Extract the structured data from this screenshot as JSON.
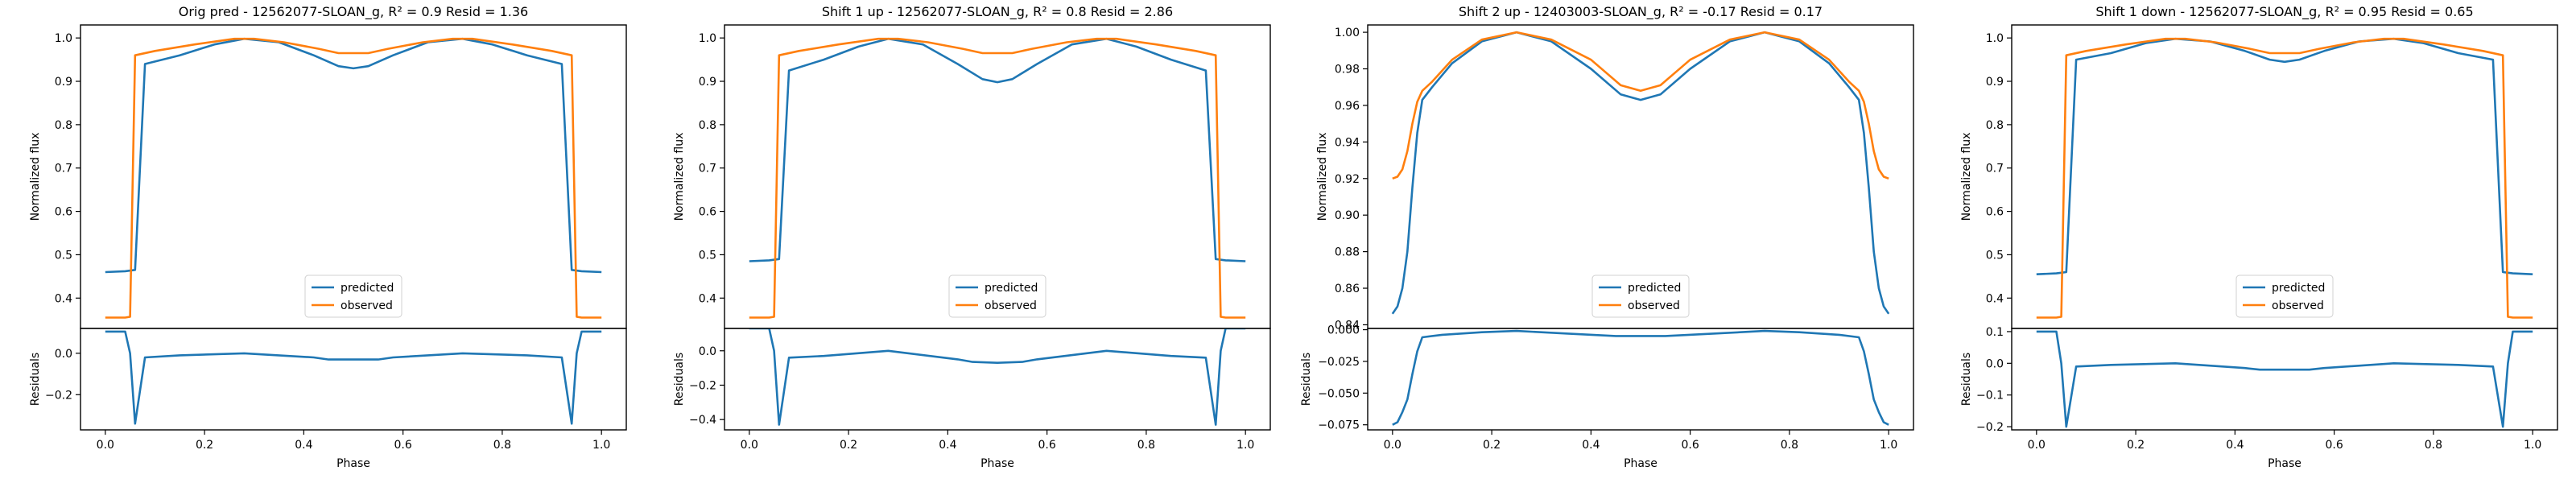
{
  "chart_data": [
    {
      "type": "line",
      "title": "Orig pred - 12562077-SLOAN_g, R² = 0.9 Resid = 1.36",
      "top": {
        "ylabel": "Normalized flux",
        "ylim": [
          0.33,
          1.03
        ],
        "yticks": [
          0.4,
          0.5,
          0.6,
          0.7,
          0.8,
          0.9,
          1.0
        ],
        "ytick_labels": [
          "0.4",
          "0.5",
          "0.6",
          "0.7",
          "0.8",
          "0.9",
          "1.0"
        ],
        "legend": "lower center",
        "series": [
          {
            "name": "predicted",
            "color": "#1f77b4",
            "x": [
              0.0,
              0.04,
              0.06,
              0.08,
              0.15,
              0.22,
              0.28,
              0.35,
              0.42,
              0.47,
              0.5,
              0.53,
              0.58,
              0.65,
              0.72,
              0.78,
              0.85,
              0.92,
              0.94,
              0.96,
              1.0
            ],
            "y": [
              0.46,
              0.462,
              0.465,
              0.94,
              0.96,
              0.985,
              0.998,
              0.99,
              0.96,
              0.935,
              0.93,
              0.935,
              0.96,
              0.99,
              0.998,
              0.985,
              0.96,
              0.94,
              0.465,
              0.462,
              0.46
            ]
          },
          {
            "name": "observed",
            "color": "#ff7f0e",
            "x": [
              0.0,
              0.04,
              0.05,
              0.06,
              0.1,
              0.18,
              0.26,
              0.3,
              0.36,
              0.43,
              0.47,
              0.5,
              0.53,
              0.57,
              0.64,
              0.7,
              0.74,
              0.82,
              0.9,
              0.94,
              0.95,
              0.96,
              1.0
            ],
            "y": [
              0.355,
              0.355,
              0.357,
              0.96,
              0.97,
              0.985,
              0.998,
              0.998,
              0.99,
              0.975,
              0.965,
              0.965,
              0.965,
              0.975,
              0.99,
              0.998,
              0.998,
              0.985,
              0.97,
              0.96,
              0.357,
              0.355,
              0.355
            ]
          }
        ]
      },
      "bottom": {
        "ylabel": "Residuals",
        "xlabel": "Phase",
        "ylim": [
          -0.37,
          0.12
        ],
        "yticks": [
          -0.2,
          0.0
        ],
        "ytick_labels": [
          "−0.2",
          "0.0"
        ],
        "series": [
          {
            "name": "residual",
            "color": "#1f77b4",
            "x": [
              0.0,
              0.04,
              0.05,
              0.06,
              0.08,
              0.15,
              0.28,
              0.42,
              0.45,
              0.5,
              0.55,
              0.58,
              0.72,
              0.85,
              0.92,
              0.94,
              0.95,
              0.96,
              1.0
            ],
            "y": [
              0.105,
              0.105,
              0.0,
              -0.34,
              -0.02,
              -0.01,
              0.0,
              -0.02,
              -0.03,
              -0.03,
              -0.03,
              -0.02,
              0.0,
              -0.01,
              -0.02,
              -0.34,
              0.0,
              0.105,
              0.105
            ]
          }
        ]
      }
    },
    {
      "type": "line",
      "title": "Shift 1 up - 12562077-SLOAN_g, R² = 0.8 Resid = 2.86",
      "top": {
        "ylabel": "Normalized flux",
        "ylim": [
          0.33,
          1.03
        ],
        "yticks": [
          0.4,
          0.5,
          0.6,
          0.7,
          0.8,
          0.9,
          1.0
        ],
        "ytick_labels": [
          "0.4",
          "0.5",
          "0.6",
          "0.7",
          "0.8",
          "0.9",
          "1.0"
        ],
        "legend": "lower center",
        "series": [
          {
            "name": "predicted",
            "color": "#1f77b4",
            "x": [
              0.0,
              0.04,
              0.06,
              0.08,
              0.15,
              0.22,
              0.28,
              0.35,
              0.42,
              0.47,
              0.5,
              0.53,
              0.58,
              0.65,
              0.72,
              0.78,
              0.85,
              0.92,
              0.94,
              0.96,
              1.0
            ],
            "y": [
              0.485,
              0.487,
              0.49,
              0.925,
              0.95,
              0.98,
              0.998,
              0.985,
              0.94,
              0.905,
              0.898,
              0.905,
              0.94,
              0.985,
              0.998,
              0.98,
              0.95,
              0.925,
              0.49,
              0.487,
              0.485
            ]
          },
          {
            "name": "observed",
            "color": "#ff7f0e",
            "x": [
              0.0,
              0.04,
              0.05,
              0.06,
              0.1,
              0.18,
              0.26,
              0.3,
              0.36,
              0.43,
              0.47,
              0.5,
              0.53,
              0.57,
              0.64,
              0.7,
              0.74,
              0.82,
              0.9,
              0.94,
              0.95,
              0.96,
              1.0
            ],
            "y": [
              0.355,
              0.355,
              0.357,
              0.96,
              0.97,
              0.985,
              0.998,
              0.998,
              0.99,
              0.975,
              0.965,
              0.965,
              0.965,
              0.975,
              0.99,
              0.998,
              0.998,
              0.985,
              0.97,
              0.96,
              0.357,
              0.355,
              0.355
            ]
          }
        ]
      },
      "bottom": {
        "ylabel": "Residuals",
        "xlabel": "Phase",
        "ylim": [
          -0.46,
          0.13
        ],
        "yticks": [
          -0.4,
          -0.2,
          0.0
        ],
        "ytick_labels": [
          "−0.4",
          "−0.2",
          "0.0"
        ],
        "series": [
          {
            "name": "residual",
            "color": "#1f77b4",
            "x": [
              0.0,
              0.04,
              0.05,
              0.06,
              0.08,
              0.15,
              0.28,
              0.42,
              0.45,
              0.5,
              0.55,
              0.58,
              0.72,
              0.85,
              0.92,
              0.94,
              0.95,
              0.96,
              1.0
            ],
            "y": [
              0.13,
              0.13,
              0.0,
              -0.43,
              -0.04,
              -0.03,
              0.0,
              -0.05,
              -0.065,
              -0.07,
              -0.065,
              -0.05,
              0.0,
              -0.03,
              -0.04,
              -0.43,
              0.0,
              0.13,
              0.13
            ]
          }
        ]
      }
    },
    {
      "type": "line",
      "title": "Shift 2 up - 12403003-SLOAN_g, R² = -0.17 Resid = 0.17",
      "top": {
        "ylabel": "Normalized flux",
        "ylim": [
          0.838,
          1.004
        ],
        "yticks": [
          0.84,
          0.86,
          0.88,
          0.9,
          0.92,
          0.94,
          0.96,
          0.98,
          1.0
        ],
        "ytick_labels": [
          "0.84",
          "0.86",
          "0.88",
          "0.90",
          "0.92",
          "0.94",
          "0.96",
          "0.98",
          "1.00"
        ],
        "legend": "lower center",
        "series": [
          {
            "name": "predicted",
            "color": "#1f77b4",
            "x": [
              0.0,
              0.01,
              0.02,
              0.03,
              0.04,
              0.05,
              0.06,
              0.08,
              0.12,
              0.18,
              0.25,
              0.32,
              0.4,
              0.46,
              0.5,
              0.54,
              0.6,
              0.68,
              0.75,
              0.82,
              0.88,
              0.92,
              0.94,
              0.95,
              0.96,
              0.97,
              0.98,
              0.99,
              1.0
            ],
            "y": [
              0.846,
              0.85,
              0.86,
              0.88,
              0.915,
              0.945,
              0.963,
              0.97,
              0.983,
              0.995,
              1.0,
              0.995,
              0.98,
              0.966,
              0.963,
              0.966,
              0.98,
              0.995,
              1.0,
              0.995,
              0.983,
              0.97,
              0.963,
              0.945,
              0.915,
              0.88,
              0.86,
              0.85,
              0.846
            ]
          },
          {
            "name": "observed",
            "color": "#ff7f0e",
            "x": [
              0.0,
              0.01,
              0.02,
              0.03,
              0.04,
              0.05,
              0.06,
              0.08,
              0.12,
              0.18,
              0.25,
              0.32,
              0.4,
              0.46,
              0.5,
              0.54,
              0.6,
              0.68,
              0.75,
              0.82,
              0.88,
              0.92,
              0.94,
              0.95,
              0.96,
              0.97,
              0.98,
              0.99,
              1.0
            ],
            "y": [
              0.92,
              0.921,
              0.925,
              0.935,
              0.95,
              0.962,
              0.968,
              0.973,
              0.985,
              0.996,
              1.0,
              0.996,
              0.985,
              0.971,
              0.968,
              0.971,
              0.985,
              0.996,
              1.0,
              0.996,
              0.985,
              0.973,
              0.968,
              0.962,
              0.95,
              0.935,
              0.925,
              0.921,
              0.92
            ]
          }
        ]
      },
      "bottom": {
        "ylabel": "Residuals",
        "xlabel": "Phase",
        "ylim": [
          -0.079,
          0.001
        ],
        "yticks": [
          -0.075,
          -0.05,
          -0.025,
          0.0
        ],
        "ytick_labels": [
          "−0.075",
          "−0.050",
          "−0.025",
          "0.000"
        ],
        "series": [
          {
            "name": "residual",
            "color": "#1f77b4",
            "x": [
              0.0,
              0.01,
              0.02,
              0.03,
              0.04,
              0.05,
              0.06,
              0.1,
              0.18,
              0.25,
              0.35,
              0.45,
              0.5,
              0.55,
              0.65,
              0.75,
              0.82,
              0.9,
              0.94,
              0.95,
              0.96,
              0.97,
              0.98,
              0.99,
              1.0
            ],
            "y": [
              -0.075,
              -0.073,
              -0.065,
              -0.055,
              -0.035,
              -0.017,
              -0.006,
              -0.004,
              -0.002,
              -0.001,
              -0.003,
              -0.005,
              -0.005,
              -0.005,
              -0.003,
              -0.001,
              -0.002,
              -0.004,
              -0.006,
              -0.017,
              -0.035,
              -0.055,
              -0.065,
              -0.073,
              -0.075
            ]
          }
        ]
      }
    },
    {
      "type": "line",
      "title": "Shift 1 down - 12562077-SLOAN_g, R² = 0.95 Resid = 0.65",
      "top": {
        "ylabel": "Normalized flux",
        "ylim": [
          0.33,
          1.03
        ],
        "yticks": [
          0.4,
          0.5,
          0.6,
          0.7,
          0.8,
          0.9,
          1.0
        ],
        "ytick_labels": [
          "0.4",
          "0.5",
          "0.6",
          "0.7",
          "0.8",
          "0.9",
          "1.0"
        ],
        "legend": "lower center",
        "series": [
          {
            "name": "predicted",
            "color": "#1f77b4",
            "x": [
              0.0,
              0.04,
              0.06,
              0.08,
              0.15,
              0.22,
              0.28,
              0.35,
              0.42,
              0.47,
              0.5,
              0.53,
              0.58,
              0.65,
              0.72,
              0.78,
              0.85,
              0.92,
              0.94,
              0.96,
              1.0
            ],
            "y": [
              0.455,
              0.457,
              0.46,
              0.95,
              0.965,
              0.988,
              0.998,
              0.992,
              0.97,
              0.95,
              0.945,
              0.95,
              0.97,
              0.992,
              0.998,
              0.988,
              0.965,
              0.95,
              0.46,
              0.457,
              0.455
            ]
          },
          {
            "name": "observed",
            "color": "#ff7f0e",
            "x": [
              0.0,
              0.04,
              0.05,
              0.06,
              0.1,
              0.18,
              0.26,
              0.3,
              0.36,
              0.43,
              0.47,
              0.5,
              0.53,
              0.57,
              0.64,
              0.7,
              0.74,
              0.82,
              0.9,
              0.94,
              0.95,
              0.96,
              1.0
            ],
            "y": [
              0.355,
              0.355,
              0.357,
              0.96,
              0.97,
              0.985,
              0.998,
              0.998,
              0.99,
              0.975,
              0.965,
              0.965,
              0.965,
              0.975,
              0.99,
              0.998,
              0.998,
              0.985,
              0.97,
              0.96,
              0.357,
              0.355,
              0.355
            ]
          }
        ]
      },
      "bottom": {
        "ylabel": "Residuals",
        "xlabel": "Phase",
        "ylim": [
          -0.21,
          0.11
        ],
        "yticks": [
          -0.2,
          -0.1,
          0.0,
          0.1
        ],
        "ytick_labels": [
          "−0.2",
          "−0.1",
          "0.0",
          "0.1"
        ],
        "series": [
          {
            "name": "residual",
            "color": "#1f77b4",
            "x": [
              0.0,
              0.04,
              0.05,
              0.06,
              0.08,
              0.15,
              0.28,
              0.42,
              0.45,
              0.5,
              0.55,
              0.58,
              0.72,
              0.85,
              0.92,
              0.94,
              0.95,
              0.96,
              1.0
            ],
            "y": [
              0.1,
              0.1,
              0.0,
              -0.2,
              -0.01,
              -0.005,
              0.0,
              -0.015,
              -0.02,
              -0.02,
              -0.02,
              -0.015,
              0.0,
              -0.005,
              -0.01,
              -0.2,
              0.0,
              0.1,
              0.1
            ]
          }
        ]
      }
    }
  ],
  "shared": {
    "xlim": [
      -0.05,
      1.05
    ],
    "xticks": [
      0.0,
      0.2,
      0.4,
      0.6,
      0.8,
      1.0
    ],
    "xtick_labels": [
      "0.0",
      "0.2",
      "0.4",
      "0.6",
      "0.8",
      "1.0"
    ]
  }
}
